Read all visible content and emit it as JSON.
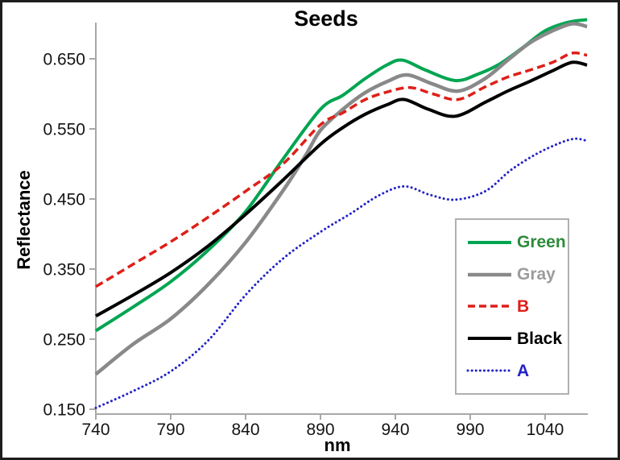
{
  "chart_data": {
    "type": "line",
    "title": "Seeds",
    "xlabel": "nm",
    "ylabel": "Reflectance",
    "x_ticks": [
      740,
      790,
      840,
      890,
      940,
      990,
      1040
    ],
    "y_ticks": [
      0.15,
      0.25,
      0.35,
      0.45,
      0.55,
      0.65
    ],
    "xlim": [
      740,
      1068
    ],
    "ylim": [
      0.14,
      0.71
    ],
    "grid": false,
    "legend_position": "lower-right",
    "axis_color": "#a8a8a8",
    "series": [
      {
        "name": "Green",
        "color": "#00a551",
        "text_color": "#2e8b3a",
        "style": "solid",
        "width": 4,
        "x": [
          740,
          765,
          790,
          815,
          840,
          865,
          890,
          905,
          920,
          935,
          945,
          960,
          980,
          995,
          1010,
          1025,
          1040,
          1055,
          1068
        ],
        "values": [
          0.262,
          0.296,
          0.332,
          0.377,
          0.432,
          0.507,
          0.578,
          0.598,
          0.622,
          0.642,
          0.648,
          0.634,
          0.619,
          0.628,
          0.643,
          0.666,
          0.69,
          0.702,
          0.706
        ]
      },
      {
        "name": "Gray",
        "color": "#898989",
        "text_color": "#9c9c9c",
        "style": "solid",
        "width": 4.5,
        "x": [
          740,
          765,
          790,
          815,
          840,
          865,
          880,
          890,
          905,
          920,
          935,
          948,
          965,
          982,
          1000,
          1015,
          1030,
          1045,
          1058,
          1068
        ],
        "values": [
          0.2,
          0.243,
          0.279,
          0.328,
          0.388,
          0.462,
          0.512,
          0.548,
          0.578,
          0.602,
          0.618,
          0.627,
          0.614,
          0.604,
          0.622,
          0.648,
          0.673,
          0.69,
          0.7,
          0.696
        ]
      },
      {
        "name": "B",
        "color": "#de1f18",
        "text_color": "#de1f18",
        "style": "dashed",
        "width": 3.5,
        "x": [
          740,
          765,
          790,
          815,
          840,
          865,
          890,
          905,
          920,
          935,
          950,
          965,
          982,
          1000,
          1015,
          1030,
          1045,
          1058,
          1068
        ],
        "values": [
          0.325,
          0.357,
          0.389,
          0.424,
          0.461,
          0.5,
          0.556,
          0.573,
          0.592,
          0.603,
          0.609,
          0.6,
          0.592,
          0.61,
          0.624,
          0.634,
          0.645,
          0.658,
          0.655
        ]
      },
      {
        "name": "Black",
        "color": "#000000",
        "text_color": "#000000",
        "style": "solid",
        "width": 4,
        "x": [
          740,
          765,
          790,
          815,
          840,
          865,
          890,
          905,
          920,
          935,
          946,
          962,
          980,
          1000,
          1015,
          1030,
          1045,
          1058,
          1068
        ],
        "values": [
          0.283,
          0.313,
          0.345,
          0.383,
          0.428,
          0.477,
          0.528,
          0.552,
          0.571,
          0.585,
          0.592,
          0.578,
          0.568,
          0.588,
          0.604,
          0.618,
          0.633,
          0.645,
          0.641
        ]
      },
      {
        "name": "A",
        "color": "#2323c8",
        "text_color": "#2323c8",
        "style": "dotted",
        "width": 3,
        "x": [
          740,
          765,
          790,
          815,
          840,
          865,
          890,
          910,
          929,
          946,
          963,
          980,
          1000,
          1017,
          1034,
          1050,
          1060,
          1068
        ],
        "values": [
          0.152,
          0.176,
          0.204,
          0.248,
          0.313,
          0.365,
          0.403,
          0.429,
          0.455,
          0.468,
          0.456,
          0.449,
          0.461,
          0.491,
          0.514,
          0.53,
          0.536,
          0.533
        ]
      }
    ]
  }
}
